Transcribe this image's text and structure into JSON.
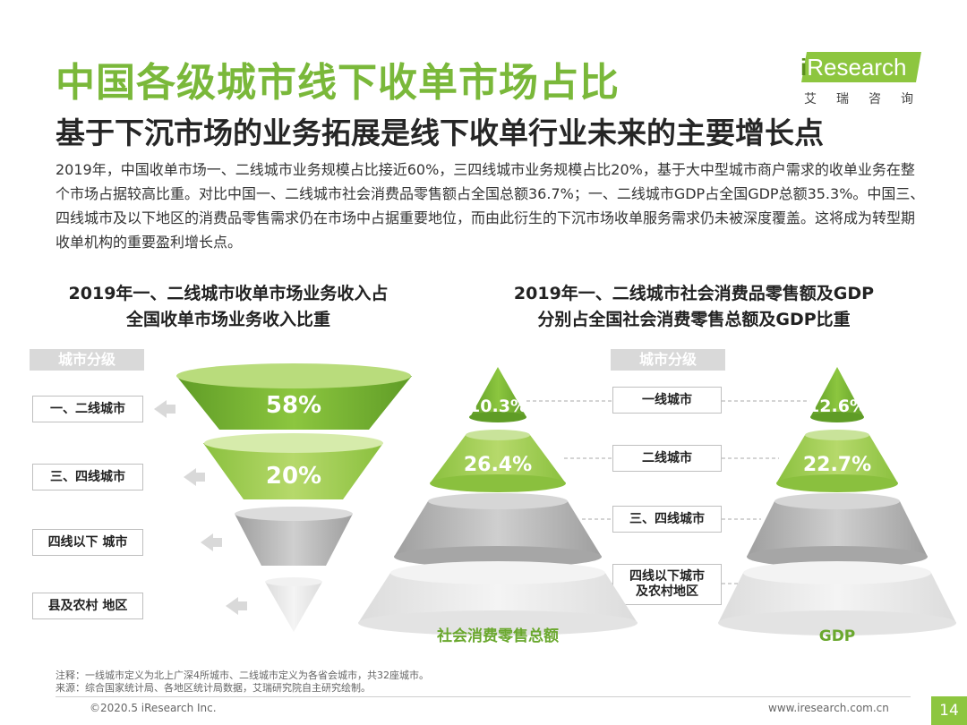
{
  "title": "中国各级城市线下收单市场占比",
  "subtitle": "基于下沉市场的业务拓展是线下收单行业未来的主要增长点",
  "logo": {
    "brand": "Research",
    "brand_prefix": "i",
    "cn": "艾瑞咨询"
  },
  "summary": "2019年，中国收单市场一、二线城市业务规模占比接近60%，三四线城市业务规模占比20%，基于大中型城市商户需求的收单业务在整个市场占据较高比重。对比中国一、二线城市社会消费品零售额占全国总额36.7%；一、二线城市GDP占全国GDP总额35.3%。中国三、四线城市及以下地区的消费品零售需求仍在市场中占据重要地位，而由此衍生的下沉市场收单服务需求仍未被深度覆盖。这将成为转型期收单机构的重要盈利增长点。",
  "left_chart": {
    "title_line1": "2019年一、二线城市收单市场业务收入占",
    "title_line2": "全国收单市场业务收入比重",
    "tier_header": "城市分级",
    "tiers": [
      "一、二线城市",
      "三、四线城市",
      "四线以下 城市",
      "县及农村 地区"
    ]
  },
  "right_chart": {
    "title_line1": "2019年一、二线城市社会消费品零售额及GDP",
    "title_line2": "分别占全国社会消费零售总额及GDP比重",
    "tier_header": "城市分级",
    "tiers": [
      "一线城市",
      "二线城市",
      "三、四线城市",
      "四线以下城市",
      "及农村地区"
    ],
    "left_label": "社会消费零售总额",
    "right_label": "GDP"
  },
  "chart_data": [
    {
      "type": "funnel",
      "title": "2019年一、二线城市收单市场业务收入占全国收单市场业务收入比重",
      "categories": [
        "一、二线城市",
        "三、四线城市",
        "四线以下 城市",
        "县及农村 地区"
      ],
      "values": [
        58,
        20,
        null,
        null
      ],
      "labels": [
        "58%",
        "20%",
        "",
        ""
      ]
    },
    {
      "type": "pyramid",
      "title": "社会消费零售总额",
      "categories": [
        "一线城市",
        "二线城市",
        "三、四线城市",
        "四线以下城市及农村地区"
      ],
      "values": [
        10.3,
        26.4,
        null,
        null
      ],
      "labels": [
        "10.3%",
        "26.4%",
        "",
        ""
      ]
    },
    {
      "type": "pyramid",
      "title": "GDP",
      "categories": [
        "一线城市",
        "二线城市",
        "三、四线城市",
        "四线以下城市及农村地区"
      ],
      "values": [
        12.6,
        22.7,
        null,
        null
      ],
      "labels": [
        "12.6%",
        "22.7%",
        "",
        ""
      ]
    }
  ],
  "colors": {
    "green_dark": "#6aa82e",
    "green_light": "#a7cf62",
    "gray_dark": "#b3b3b3",
    "gray_light": "#e6e6e6",
    "title_green": "#7ab83a"
  },
  "footer": {
    "note": "注释：一线城市定义为北上广深4所城市、二线城市定义为各省会城市，共32座城市。",
    "source": "来源：综合国家统计局、各地区统计局数据，艾瑞研究院自主研究绘制。",
    "copyright": "©2020.5 iResearch Inc.",
    "url": "www.iresearch.com.cn",
    "page": "14"
  }
}
